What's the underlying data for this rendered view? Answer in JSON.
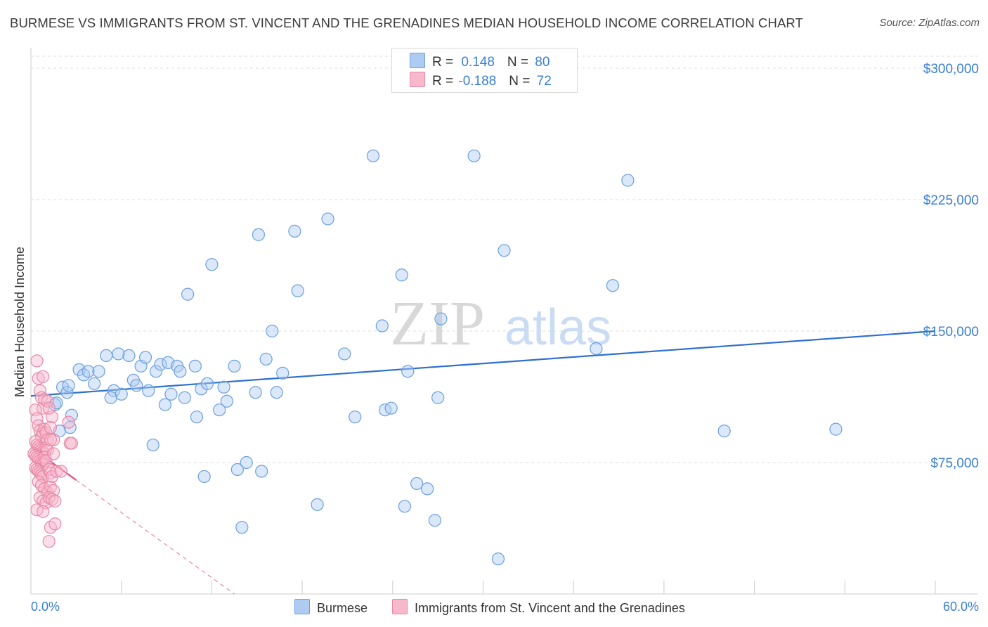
{
  "title": "BURMESE VS IMMIGRANTS FROM ST. VINCENT AND THE GRENADINES MEDIAN HOUSEHOLD INCOME CORRELATION CHART",
  "source": "Source: ZipAtlas.com",
  "watermark": {
    "zip": "ZIP",
    "atlas": "atlas"
  },
  "legend": {
    "rows": [
      {
        "r_label": "R = ",
        "r_value": "0.148",
        "n_label": "N = ",
        "n_value": "80",
        "color": "#aecbf2"
      },
      {
        "r_label": "R = ",
        "r_value": "-0.188",
        "n_label": "N = ",
        "n_value": "72",
        "color": "#f7b8cb"
      }
    ]
  },
  "chart_data": {
    "type": "scatter",
    "title": "BURMESE VS IMMIGRANTS FROM ST. VINCENT AND THE GRENADINES MEDIAN HOUSEHOLD INCOME CORRELATION CHART",
    "ylabel": "Median Household Income",
    "xlabel": "",
    "xlim": [
      0,
      60
    ],
    "ylim": [
      0,
      310000
    ],
    "x_tick_labels": [
      "0.0%",
      "60.0%"
    ],
    "y_ticks": [
      {
        "value": 75000,
        "label": "$75,000"
      },
      {
        "value": 150000,
        "label": "$150,000"
      },
      {
        "value": 225000,
        "label": "$225,000"
      },
      {
        "value": 300000,
        "label": "$300,000"
      }
    ],
    "grid": "horizontal dashed",
    "legend_placement": "bottom",
    "series": [
      {
        "name": "Burmese",
        "color": "#aecbf2",
        "stroke": "#6b9fe0",
        "trend": {
          "x": [
            0,
            60
          ],
          "y": [
            113000,
            150000
          ],
          "color": "#2f6fcf"
        },
        "points": [
          [
            1.6,
            108000
          ],
          [
            2.1,
            118000
          ],
          [
            2.4,
            115000
          ],
          [
            2.5,
            119000
          ],
          [
            2.7,
            102000
          ],
          [
            2.6,
            95000
          ],
          [
            1.9,
            93000
          ],
          [
            1.7,
            109000
          ],
          [
            3.2,
            128000
          ],
          [
            3.5,
            125000
          ],
          [
            3.8,
            127000
          ],
          [
            4.2,
            120000
          ],
          [
            4.5,
            127000
          ],
          [
            5.0,
            136000
          ],
          [
            5.5,
            116000
          ],
          [
            5.8,
            137000
          ],
          [
            6.0,
            114000
          ],
          [
            6.5,
            136000
          ],
          [
            6.8,
            122000
          ],
          [
            7.0,
            119000
          ],
          [
            7.3,
            130000
          ],
          [
            7.6,
            135000
          ],
          [
            7.8,
            116000
          ],
          [
            8.1,
            85000
          ],
          [
            8.3,
            127000
          ],
          [
            8.6,
            131000
          ],
          [
            8.9,
            108000
          ],
          [
            9.1,
            132000
          ],
          [
            9.3,
            114000
          ],
          [
            9.7,
            130000
          ],
          [
            9.9,
            127000
          ],
          [
            10.2,
            112000
          ],
          [
            10.4,
            171000
          ],
          [
            10.9,
            130000
          ],
          [
            11.0,
            101000
          ],
          [
            11.3,
            117000
          ],
          [
            11.5,
            67000
          ],
          [
            11.7,
            120000
          ],
          [
            12.0,
            188000
          ],
          [
            12.5,
            105000
          ],
          [
            12.8,
            118000
          ],
          [
            13.0,
            110000
          ],
          [
            13.5,
            130000
          ],
          [
            13.7,
            71000
          ],
          [
            14.0,
            38000
          ],
          [
            14.3,
            75000
          ],
          [
            14.9,
            115000
          ],
          [
            15.1,
            205000
          ],
          [
            15.3,
            70000
          ],
          [
            15.6,
            134000
          ],
          [
            16.0,
            150000
          ],
          [
            16.3,
            115000
          ],
          [
            16.7,
            126000
          ],
          [
            17.5,
            207000
          ],
          [
            17.7,
            173000
          ],
          [
            19.0,
            51000
          ],
          [
            19.7,
            214000
          ],
          [
            20.8,
            137000
          ],
          [
            21.5,
            101000
          ],
          [
            22.7,
            250000
          ],
          [
            23.3,
            153000
          ],
          [
            23.5,
            105000
          ],
          [
            23.9,
            106000
          ],
          [
            24.6,
            182000
          ],
          [
            24.8,
            50000
          ],
          [
            25.0,
            127000
          ],
          [
            25.6,
            63000
          ],
          [
            26.3,
            60000
          ],
          [
            26.8,
            42000
          ],
          [
            27.0,
            112000
          ],
          [
            27.2,
            157000
          ],
          [
            29.4,
            250000
          ],
          [
            31.0,
            20000
          ],
          [
            31.4,
            196000
          ],
          [
            37.5,
            140000
          ],
          [
            38.6,
            176000
          ],
          [
            39.6,
            236000
          ],
          [
            46.0,
            93000
          ],
          [
            53.4,
            94000
          ],
          [
            5.3,
            112000
          ]
        ]
      },
      {
        "name": "Immigrants from St. Vincent and the Grenadines",
        "color": "#f7b8cb",
        "stroke": "#e987a6",
        "trend": {
          "x": [
            0.1,
            3.0
          ],
          "y": [
            83000,
            65000
          ],
          "color": "#e0507e"
        },
        "trend_ext": {
          "x": [
            3.0,
            13.5
          ],
          "y": [
            65000,
            0
          ]
        },
        "points": [
          [
            0.4,
            133000
          ],
          [
            0.5,
            123000
          ],
          [
            0.6,
            116000
          ],
          [
            0.7,
            112000
          ],
          [
            0.8,
            106000
          ],
          [
            0.9,
            111000
          ],
          [
            0.3,
            105000
          ],
          [
            0.4,
            100000
          ],
          [
            0.5,
            96000
          ],
          [
            0.6,
            93000
          ],
          [
            0.7,
            90000
          ],
          [
            0.8,
            92000
          ],
          [
            0.9,
            94000
          ],
          [
            1.0,
            92000
          ],
          [
            1.1,
            88000
          ],
          [
            0.3,
            87000
          ],
          [
            0.4,
            85000
          ],
          [
            0.5,
            84000
          ],
          [
            0.6,
            83000
          ],
          [
            0.7,
            82000
          ],
          [
            0.8,
            81000
          ],
          [
            0.9,
            80000
          ],
          [
            1.0,
            83000
          ],
          [
            1.1,
            82000
          ],
          [
            0.2,
            80000
          ],
          [
            0.3,
            79000
          ],
          [
            0.4,
            78000
          ],
          [
            0.5,
            77000
          ],
          [
            0.6,
            76000
          ],
          [
            0.7,
            75000
          ],
          [
            0.8,
            74000
          ],
          [
            0.9,
            78000
          ],
          [
            1.0,
            76000
          ],
          [
            0.3,
            72000
          ],
          [
            0.4,
            71000
          ],
          [
            0.5,
            70000
          ],
          [
            0.6,
            69000
          ],
          [
            0.7,
            68000
          ],
          [
            0.8,
            67000
          ],
          [
            1.2,
            71000
          ],
          [
            1.3,
            69000
          ],
          [
            1.4,
            67000
          ],
          [
            0.5,
            64000
          ],
          [
            0.7,
            62000
          ],
          [
            0.9,
            60000
          ],
          [
            1.1,
            58000
          ],
          [
            1.3,
            61000
          ],
          [
            1.5,
            59000
          ],
          [
            0.6,
            55000
          ],
          [
            0.8,
            53000
          ],
          [
            1.0,
            52000
          ],
          [
            1.2,
            55000
          ],
          [
            1.4,
            54000
          ],
          [
            1.6,
            53000
          ],
          [
            0.4,
            48000
          ],
          [
            0.8,
            47000
          ],
          [
            1.3,
            38000
          ],
          [
            1.6,
            40000
          ],
          [
            1.2,
            30000
          ],
          [
            0.8,
            124000
          ],
          [
            1.1,
            110000
          ],
          [
            1.4,
            101000
          ],
          [
            1.2,
            106000
          ],
          [
            1.3,
            95000
          ],
          [
            2.5,
            98000
          ],
          [
            2.6,
            86000
          ],
          [
            2.7,
            86000
          ],
          [
            1.5,
            80000
          ],
          [
            1.7,
            70000
          ],
          [
            2.0,
            70000
          ],
          [
            1.5,
            88000
          ],
          [
            1.3,
            88000
          ]
        ]
      }
    ]
  }
}
